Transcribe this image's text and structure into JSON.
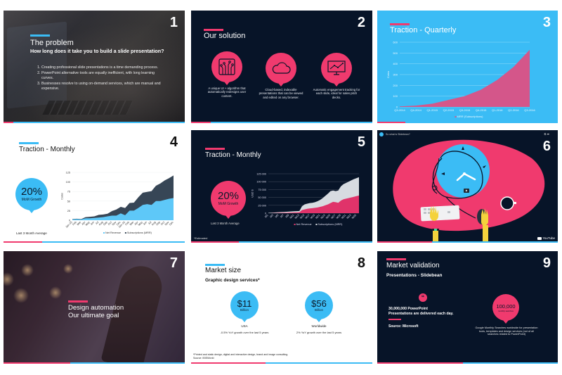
{
  "colors": {
    "pink": "#f03a6e",
    "blue": "#3bbcf5",
    "navy": "#071428",
    "white": "#ffffff"
  },
  "slides": [
    {
      "number": "1",
      "title": "The problem",
      "subtitle": "How long does it take you to build a slide presentation?",
      "points": [
        "Creating professional slide presentations is a time demanding process.",
        "PowerPoint alternative tools are equally inefficient, with long learning curves.",
        "Businesses resolve to using on-demand services, which are manual and expensive."
      ]
    },
    {
      "number": "2",
      "title": "Our solution",
      "features": [
        {
          "icon": "circuit-icon",
          "text": "A unique UI + algorithm that automatically redesigns user content."
        },
        {
          "icon": "cloud-icon",
          "text": "Cloud-based, indexable presentations that can be viewed and edited on any browser."
        },
        {
          "icon": "monitor-chart-icon",
          "text": "Automatic engagement tracking for each slide, ideal for sales pitch decks."
        }
      ]
    },
    {
      "number": "3",
      "title": "Traction - Quarterly"
    },
    {
      "number": "4",
      "title": "Traction - Monthly",
      "stat": {
        "value": "20%",
        "label": "MoM Growth"
      },
      "footnote": "Last 3 Month Average"
    },
    {
      "number": "5",
      "title": "Traction - Monthly",
      "stat": {
        "value": "20%",
        "label": "MoM Growth"
      },
      "footnote": "Last 3 Month Average",
      "note": "*Estimated"
    },
    {
      "number": "6",
      "video_title": "So what is Slidebean?",
      "video_brand": "YouTube",
      "top_icons": "⏲ ➦"
    },
    {
      "number": "7",
      "title_line1": "Design automation",
      "title_line2": "Our ultimate goal"
    },
    {
      "number": "8",
      "title": "Market size",
      "subtitle": "Graphic design services*",
      "stats": [
        {
          "value": "$11",
          "unit": "Billion",
          "region": "USA",
          "desc": "-0.5% YoY growth over the last 5 years"
        },
        {
          "value": "$56",
          "unit": "Billion",
          "region": "Worldwide",
          "desc": "2% YoY growth over the last 5 years"
        }
      ],
      "footnote_line1": "*Printed and static design, digital and interactive design, brand and image consulting.",
      "footnote_line2": "Source: IBISWorld"
    },
    {
      "number": "9",
      "title": "Market validation",
      "subtitle": "Presentations - Slidebean",
      "quote_mark": "“",
      "quote_line1": "30,000,000 PowerPoint",
      "quote_line2": "Presentations are delivered each day.",
      "source": "Source: Microsoft",
      "stat": {
        "value": "100,000",
        "label": "monthly searches"
      },
      "stat_desc": "Google Monthly Searches worldwide for presentation tools, templates and design services (not of all searches related to PowerPoint)"
    }
  ],
  "chart_data": [
    {
      "type": "area",
      "title": "Traction - Quarterly",
      "categories": [
        "Q3-2014",
        "Q4-2014",
        "Q1-2015",
        "Q2-2015",
        "Q3-2015",
        "Q4-2015",
        "Q1-2016",
        "Q2-2016",
        "Q3-2016"
      ],
      "series": [
        {
          "name": "MRR (Subscriptions)",
          "color": "#d4568a",
          "values": [
            5,
            12,
            30,
            65,
            100,
            160,
            250,
            370,
            530
          ]
        }
      ],
      "xlabel": "",
      "ylabel": "Coins",
      "yticks": [
        0,
        100,
        200,
        300,
        400,
        500,
        600
      ],
      "ylim": [
        0,
        600
      ],
      "grid": true,
      "legend_position": "bottom"
    },
    {
      "type": "area",
      "title": "Traction - Monthly",
      "categories": [
        "Jan-15",
        "Feb",
        "Mar",
        "Apr",
        "May",
        "Jun",
        "Jul",
        "Aug",
        "Sep",
        "Oct",
        "Nov",
        "Dec",
        "Jan-16",
        "Feb",
        "Mar",
        "Apr",
        "May",
        "Jun",
        "Jul",
        "Aug",
        "Sep",
        "Oct",
        "Nov",
        "Dec"
      ],
      "series": [
        {
          "name": "Net Revenue",
          "color": "#5ec8f8",
          "values": [
            2,
            3,
            2,
            5,
            5,
            6,
            7,
            8,
            10,
            12,
            12,
            18,
            13,
            25,
            25,
            32,
            40,
            42,
            40,
            50,
            50,
            53,
            56,
            58
          ]
        },
        {
          "name": "Subscriptions (MRR)",
          "color": "#374656",
          "values": [
            3,
            4,
            3,
            8,
            9,
            10,
            14,
            15,
            17,
            24,
            28,
            35,
            32,
            45,
            46,
            60,
            72,
            74,
            76,
            90,
            96,
            104,
            110,
            117
          ]
        }
      ],
      "xlabel": "",
      "ylabel": "Coins",
      "yticks": [
        0,
        25,
        50,
        75,
        100,
        125
      ],
      "ylim": [
        0,
        125
      ],
      "stacked": true,
      "legend_position": "bottom"
    },
    {
      "type": "area",
      "title": "Traction - Monthly",
      "categories": [
        "M1",
        "M2",
        "M3",
        "M4",
        "M5",
        "M6",
        "M7",
        "M8",
        "M9",
        "M10",
        "M11",
        "M12",
        "M13",
        "M14",
        "M15",
        "M16",
        "M17",
        "M18",
        "M19",
        "M20",
        "M21",
        "M22",
        "M23",
        "M24",
        "M25",
        "M26",
        "M27",
        "M28",
        "M29",
        "M30",
        "M31",
        "M32",
        "M33",
        "M34",
        "M35",
        "M36"
      ],
      "series": [
        {
          "name": "Net Revenue",
          "color": "#e0336a",
          "values": [
            0,
            0,
            500,
            500,
            1000,
            1000,
            1500,
            1500,
            2000,
            2000,
            2500,
            2500,
            3000,
            10000,
            12000,
            14000,
            15000,
            16000,
            17000,
            18000,
            20000,
            22000,
            25000,
            28000,
            32000,
            36000,
            35000,
            33000,
            40000,
            44000,
            46000,
            48000,
            50000,
            52000,
            54000,
            56000
          ]
        },
        {
          "name": "Subscriptions (MRR)",
          "color": "#d7dbe0",
          "values": [
            1000,
            1500,
            2000,
            2500,
            3000,
            3500,
            4000,
            4500,
            5000,
            5500,
            6000,
            6500,
            7000,
            22000,
            28000,
            30000,
            32000,
            33000,
            35000,
            38000,
            42000,
            48000,
            55000,
            62000,
            70000,
            72000,
            70000,
            72000,
            85000,
            92000,
            96000,
            100000,
            104000,
            108000,
            111000,
            114000
          ]
        }
      ],
      "xlabel": "",
      "ylabel": "USD $",
      "yticks": [
        "0",
        "25 000",
        "50 000",
        "75 000",
        "100 000",
        "125 000"
      ],
      "ylim": [
        0,
        125000
      ],
      "legend_position": "bottom"
    }
  ]
}
